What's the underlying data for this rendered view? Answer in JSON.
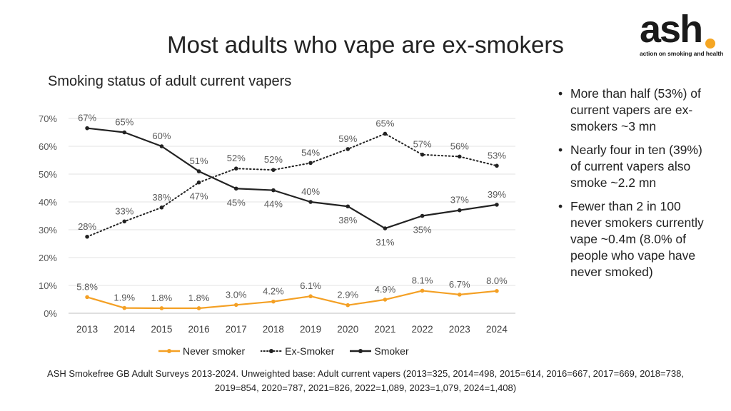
{
  "title": "Most adults who vape are ex-smokers",
  "subtitle": "Smoking status of adult current vapers",
  "logo": {
    "word": "ash",
    "tagline": "action on smoking and health",
    "dot_color": "#f5a623"
  },
  "bullets": [
    "More than half (53%) of current vapers are ex-smokers ~3 mn",
    "Nearly four in ten (39%) of current vapers also smoke ~2.2 mn",
    "Fewer than 2 in 100 never smokers currently vape ~0.4m (8.0% of people who vape have never smoked)"
  ],
  "source": "ASH Smokefree GB Adult Surveys 2013-2024. Unweighted base: Adult current vapers (2013=325, 2014=498, 2015=614, 2016=667, 2017=669, 2018=738, 2019=854, 2020=787, 2021=826, 2022=1,089, 2023=1,079, 2024=1,408)",
  "chart_data": {
    "type": "line",
    "x": [
      "2013",
      "2014",
      "2015",
      "2016",
      "2017",
      "2018",
      "2019",
      "2020",
      "2021",
      "2022",
      "2023",
      "2024"
    ],
    "ylim": [
      0,
      70
    ],
    "yticks": [
      "0%",
      "10%",
      "20%",
      "30%",
      "40%",
      "50%",
      "60%",
      "70%"
    ],
    "ytick_values": [
      0,
      10,
      20,
      30,
      40,
      50,
      60,
      70
    ],
    "grid": "horizontal",
    "legend_position": "bottom",
    "series": [
      {
        "name": "Never smoker",
        "color": "#f4a024",
        "style": "solid",
        "values": [
          5.8,
          1.9,
          1.8,
          1.8,
          3.0,
          4.2,
          6.1,
          2.9,
          4.9,
          8.1,
          6.7,
          8.0
        ],
        "labels": [
          "5.8%",
          "1.9%",
          "1.8%",
          "1.8%",
          "3.0%",
          "4.2%",
          "6.1%",
          "2.9%",
          "4.9%",
          "8.1%",
          "6.7%",
          "8.0%"
        ],
        "label_pos": [
          "above",
          "above",
          "above",
          "above",
          "above",
          "above",
          "above",
          "above",
          "above",
          "above",
          "above",
          "above"
        ]
      },
      {
        "name": "Ex-Smoker",
        "color": "#222222",
        "style": "dotted",
        "values": [
          27.5,
          33,
          38,
          47,
          52,
          51.5,
          54,
          59,
          64.5,
          57,
          56.3,
          53
        ],
        "labels": [
          "28%",
          "33%",
          "38%",
          "47%",
          "52%",
          "52%",
          "54%",
          "59%",
          "65%",
          "57%",
          "56%",
          "53%"
        ],
        "label_pos": [
          "above",
          "above",
          "above",
          "below",
          "above",
          "above",
          "above",
          "above",
          "above",
          "above",
          "above",
          "above"
        ]
      },
      {
        "name": "Smoker",
        "color": "#222222",
        "style": "solid",
        "values": [
          66.5,
          65,
          60,
          51,
          44.8,
          44.2,
          40,
          38.4,
          30.5,
          35,
          37,
          39
        ],
        "labels": [
          "67%",
          "65%",
          "60%",
          "51%",
          "45%",
          "44%",
          "40%",
          "38%",
          "31%",
          "35%",
          "37%",
          "39%"
        ],
        "label_pos": [
          "above",
          "above",
          "above",
          "above",
          "below",
          "below",
          "above",
          "below",
          "below",
          "below",
          "above",
          "above"
        ]
      }
    ]
  }
}
